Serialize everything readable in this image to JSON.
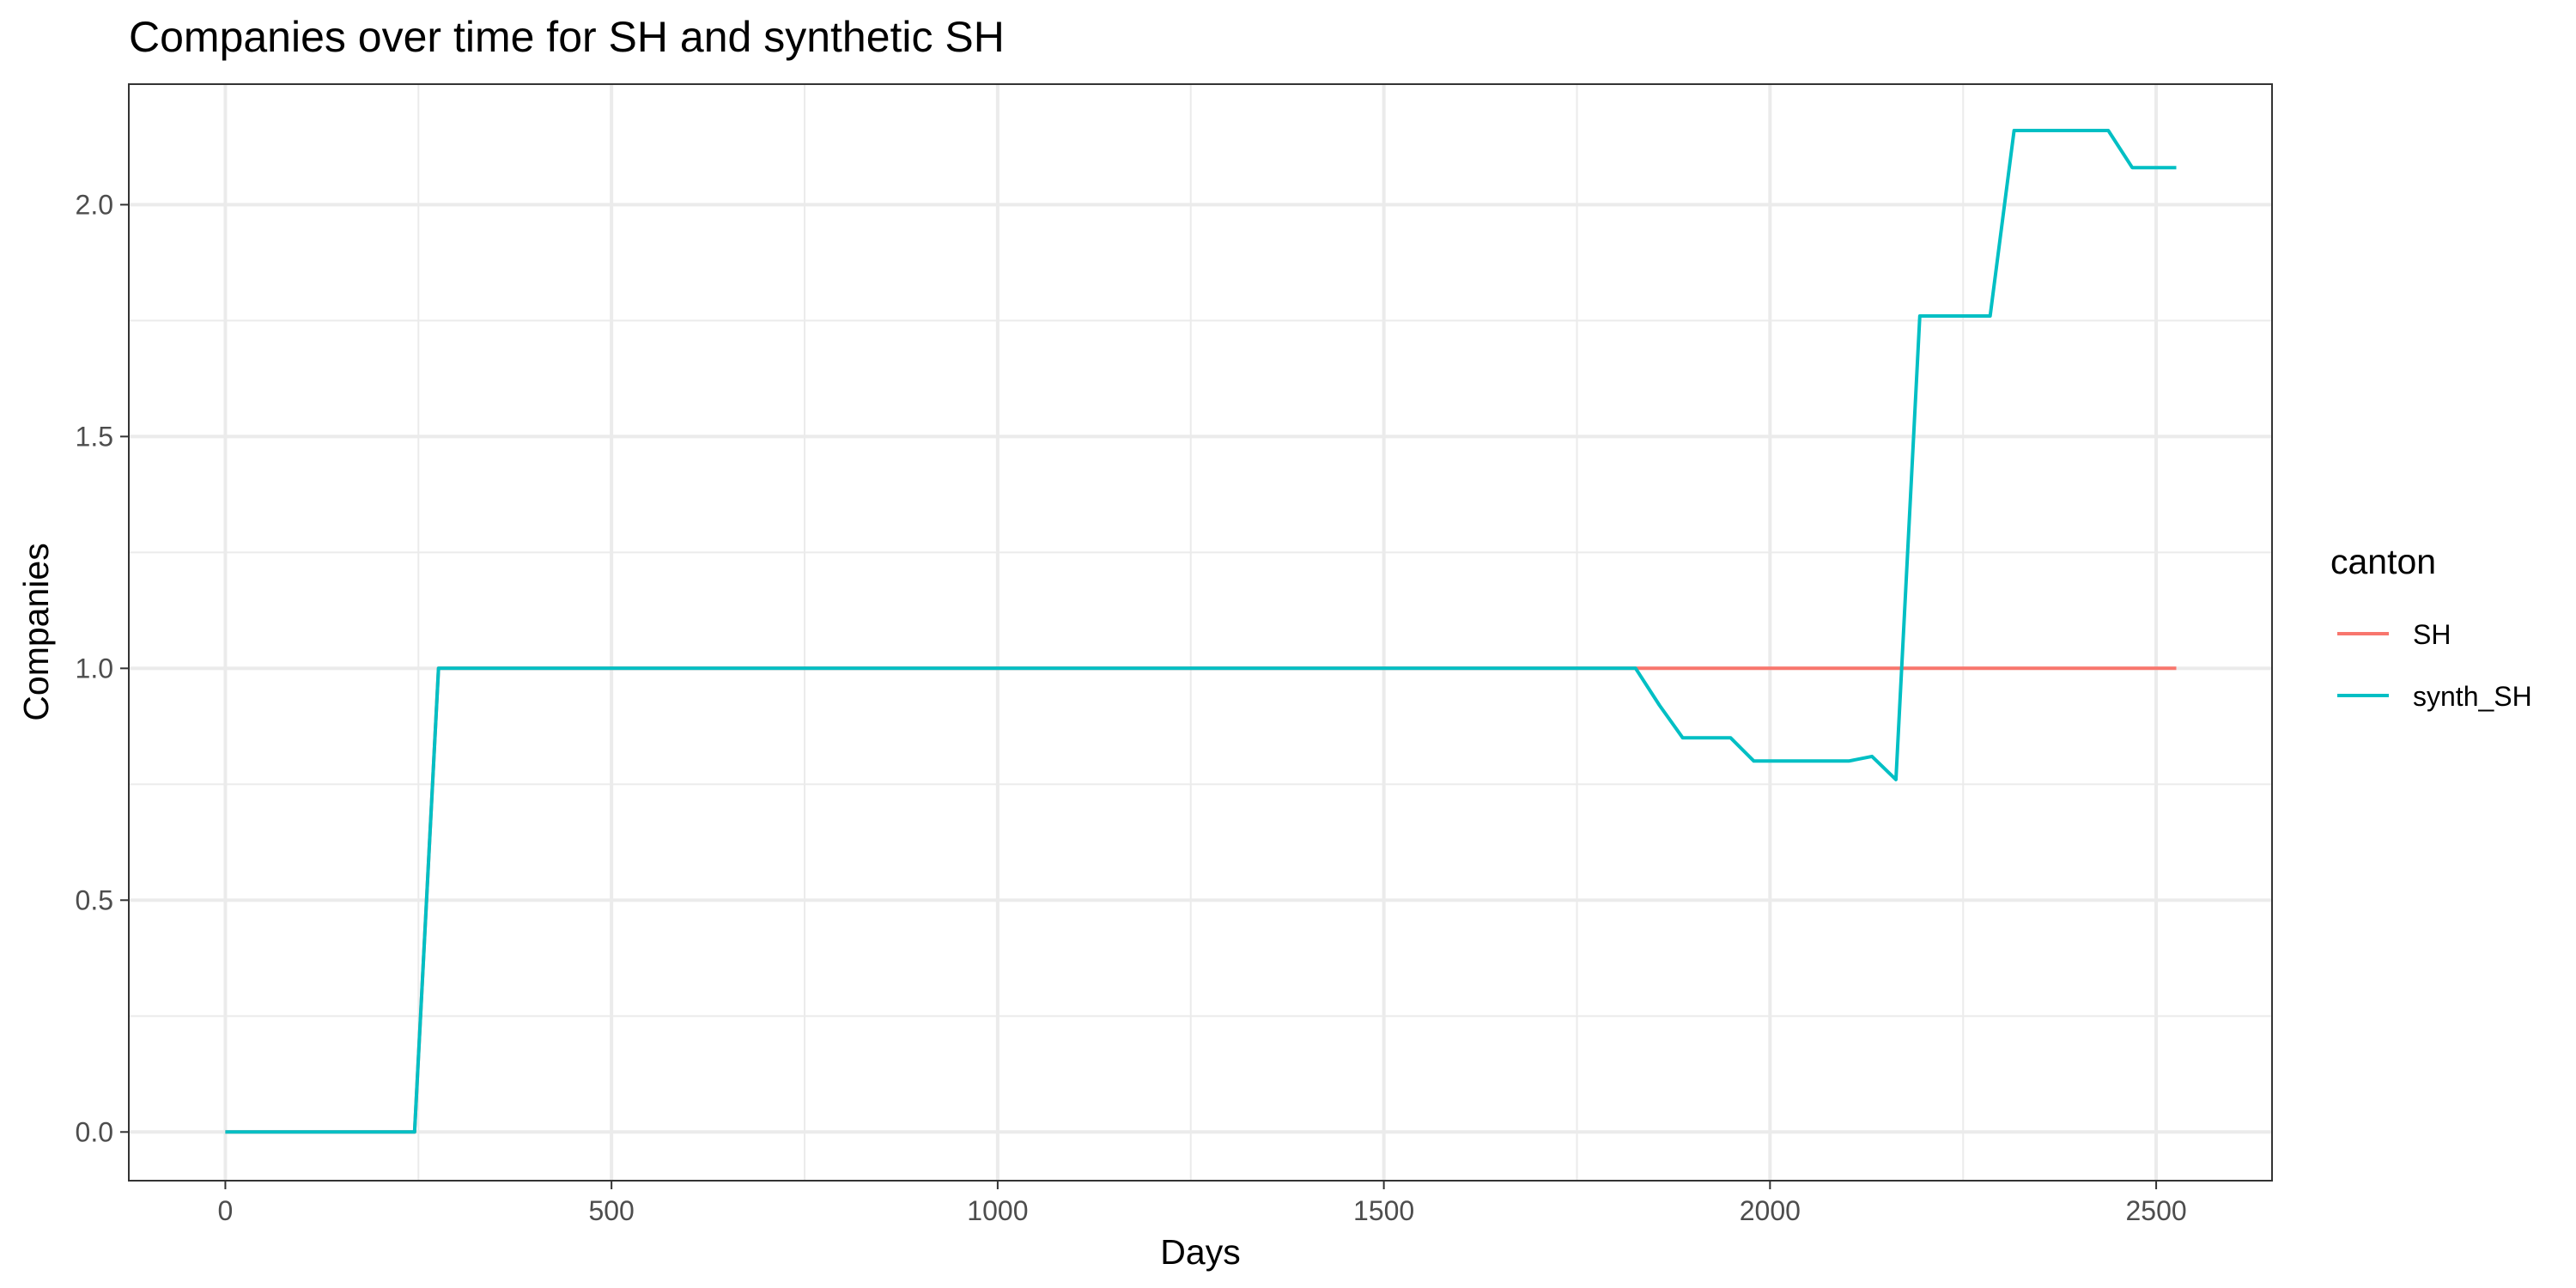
{
  "chart_data": {
    "type": "line",
    "title": "Companies over time for SH and synthetic SH",
    "xlabel": "Days",
    "ylabel": "Companies",
    "xlim": [
      -125,
      2650
    ],
    "ylim": [
      -0.105,
      2.26
    ],
    "x_ticks": [
      0,
      500,
      1000,
      1500,
      2000,
      2500
    ],
    "x_tick_labels": [
      "0",
      "500",
      "1000",
      "1500",
      "2000",
      "2500"
    ],
    "x_minor_ticks": [
      250,
      750,
      1250,
      1750,
      2250
    ],
    "y_ticks": [
      0.0,
      0.5,
      1.0,
      1.5,
      2.0
    ],
    "y_tick_labels": [
      "0.0",
      "0.5",
      "1.0",
      "1.5",
      "2.0"
    ],
    "y_minor_ticks": [
      0.25,
      0.75,
      1.25,
      1.75
    ],
    "grid": true,
    "legend": {
      "title": "canton",
      "position": "right"
    },
    "series": [
      {
        "name": "SH",
        "color": "#F8766D",
        "x": [
          0,
          245,
          276,
          2526
        ],
        "y": [
          0,
          0,
          1,
          1
        ]
      },
      {
        "name": "synth_SH",
        "color": "#00BFC4",
        "x": [
          0,
          245,
          276,
          1826,
          1857,
          1887,
          1918,
          1949,
          1979,
          2010,
          2040,
          2071,
          2102,
          2132,
          2163,
          2194,
          2224,
          2255,
          2285,
          2316,
          2347,
          2377,
          2408,
          2438,
          2469,
          2500,
          2526
        ],
        "y": [
          0,
          0,
          1,
          1,
          0.92,
          0.85,
          0.85,
          0.85,
          0.8,
          0.8,
          0.8,
          0.8,
          0.8,
          0.81,
          0.76,
          1.76,
          1.76,
          1.76,
          1.76,
          2.16,
          2.16,
          2.16,
          2.16,
          2.16,
          2.08,
          2.08,
          2.08
        ]
      }
    ]
  }
}
